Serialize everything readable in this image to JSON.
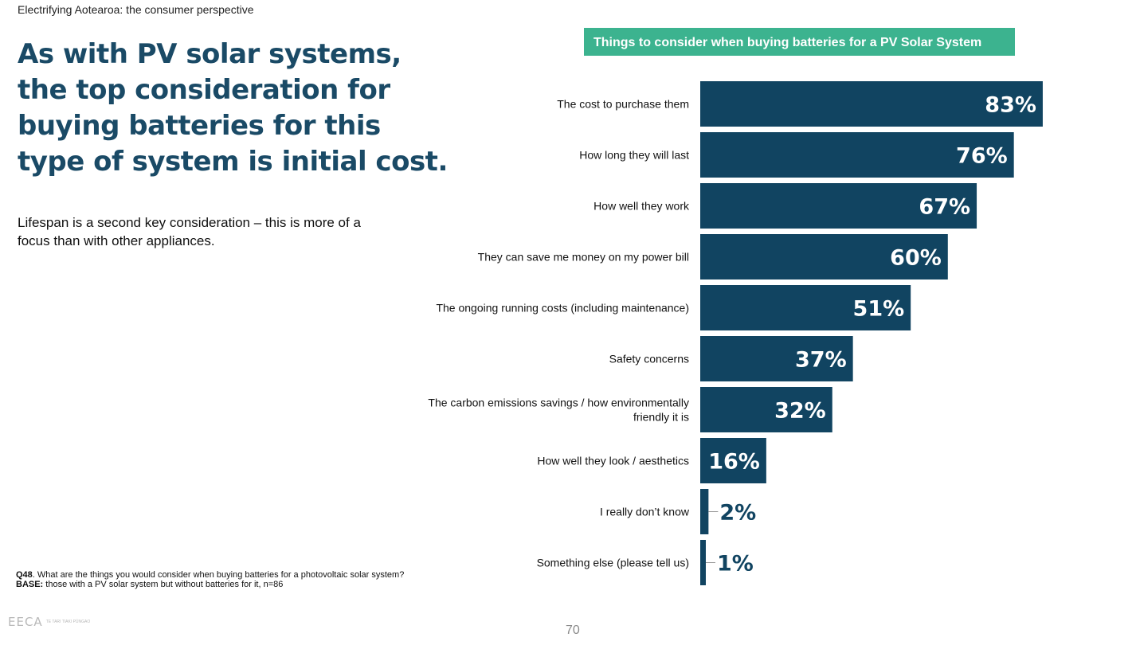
{
  "header": {
    "doc_title": "Electrifying Aotearoa: the consumer perspective"
  },
  "headline": {
    "lines": [
      "As with PV solar systems,",
      "the top consideration for",
      "buying batteries for this",
      "type of system is initial cost."
    ]
  },
  "subtext": "Lifespan is a second key consideration – this is more of a focus than with other appliances.",
  "footnote": {
    "q_label": "Q48",
    "q_text": ". What are the things you would consider when buying batteries for a photovoltaic solar system?",
    "base_label": "BASE:",
    "base_text": " those with a PV solar system but without batteries for it, n=86"
  },
  "logo": {
    "mark": "EECA",
    "sub": "TE TARI TIAKI PŪNGAO"
  },
  "page_number": "70",
  "colors": {
    "bar": "#114461",
    "header_bg": "#3cb38f",
    "headline": "#1a4a66"
  },
  "chart_data": {
    "type": "bar",
    "orientation": "horizontal",
    "title": "Things to consider when buying batteries for a PV Solar System",
    "categories": [
      "The cost to purchase them",
      "How long they will last",
      "How well they work",
      "They can save me money on my power bill",
      "The ongoing running costs (including maintenance)",
      "Safety concerns",
      "The carbon emissions savings / how environmentally friendly it is",
      "How well they look / aesthetics",
      "I really don’t know",
      "Something else (please tell us)"
    ],
    "values": [
      83,
      76,
      67,
      60,
      51,
      37,
      32,
      16,
      2,
      1
    ],
    "value_labels": [
      "83%",
      "76%",
      "67%",
      "60%",
      "51%",
      "37%",
      "32%",
      "16%",
      "2%",
      "1%"
    ],
    "xlim": [
      0,
      100
    ],
    "unit": "%"
  }
}
